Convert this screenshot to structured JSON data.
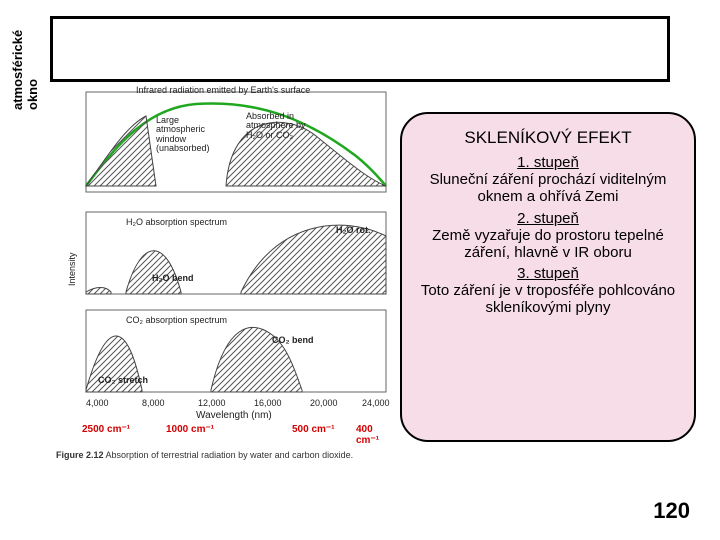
{
  "vertical_label": "atmosférické\nokno",
  "chart": {
    "panel1_top_label": "Infrared radiation emitted by Earth's surface",
    "large_window": "Large\natmospheric\nwindow\n(unabsorbed)",
    "absorbed_label": "Absorbed in\natmosphere by\nH₂O or CO₂",
    "h2o_spectrum": "H₂O absorption spectrum",
    "h2o_bend": "H₂O bend",
    "h2o_rot": "H₂O rot.",
    "co2_spectrum": "CO₂ absorption spectrum",
    "co2_stretch": "CO₂ stretch",
    "co2_bend": "CO₂ bend",
    "y_label": "Intensity",
    "ticks_nm": [
      "4,000",
      "8,000",
      "12,000",
      "16,000",
      "20,000",
      "24,000"
    ],
    "wavelength_label": "Wavelength (nm)",
    "ticks_cm": [
      "2500 cm⁻¹",
      "1000 cm⁻¹",
      "500 cm⁻¹",
      "400 cm⁻¹"
    ]
  },
  "figure_caption_bold": "Figure 2.12",
  "figure_caption_rest": "  Absorption of terrestrial radiation by water and carbon dioxide.",
  "callout": {
    "title": "SKLENÍKOVÝ EFEKT",
    "s1h": "1. stupeň",
    "s1b": "Sluneční záření prochází viditelným oknem a ohřívá Zemi",
    "s2h": "2. stupeň",
    "s2b": "Země vyzařuje do prostoru tepelné záření, hlavně v IR oboru",
    "s3h": "3. stupeň",
    "s3b": "Toto záření je v troposféře pohlcováno skleníkovými plyny"
  },
  "page_number": "120"
}
